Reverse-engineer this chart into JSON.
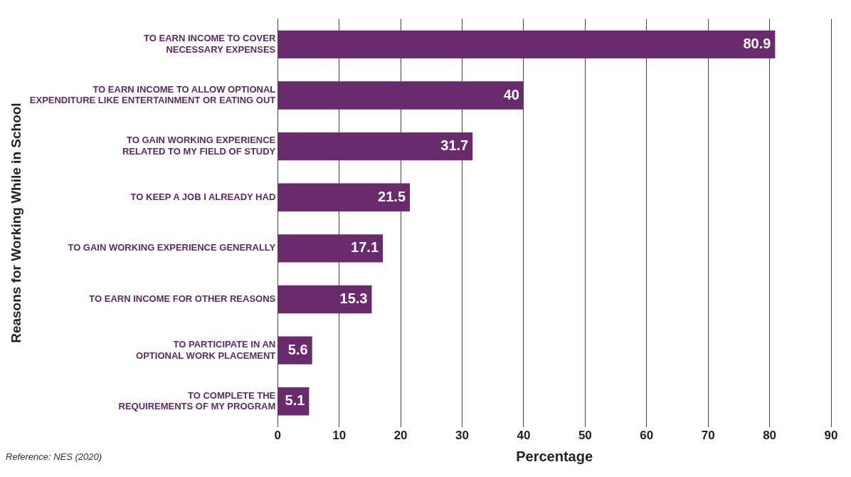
{
  "chart_data": {
    "type": "bar",
    "orientation": "horizontal",
    "categories": [
      "TO EARN INCOME TO COVER NECESSARY EXPENSES",
      "TO EARN INCOME TO ALLOW OPTIONAL EXPENDITURE LIKE ENTERTAINMENT OR EATING OUT",
      "TO GAIN WORKING EXPERIENCE RELATED TO MY FIELD OF STUDY",
      "TO KEEP A JOB I ALREADY HAD",
      "TO GAIN WORKING EXPERIENCE GENERALLY",
      "TO EARN INCOME FOR OTHER REASONS",
      "TO PARTICIPATE IN AN OPTIONAL WORK PLACEMENT",
      "TO COMPLETE THE REQUIREMENTS OF MY PROGRAM"
    ],
    "values": [
      80.9,
      40,
      31.7,
      21.5,
      17.1,
      15.3,
      5.6,
      5.1
    ],
    "color": "#6a2a6e",
    "xlabel": "Percentage",
    "ylabel": "Reasons for Working While in School",
    "xlim": [
      0,
      90
    ],
    "xticks": [
      0,
      10,
      20,
      30,
      40,
      50,
      60,
      70,
      80,
      90
    ],
    "grid": "x",
    "legend": false,
    "data_labels": true,
    "annotations": [
      "Reference: NES (2020)"
    ]
  }
}
